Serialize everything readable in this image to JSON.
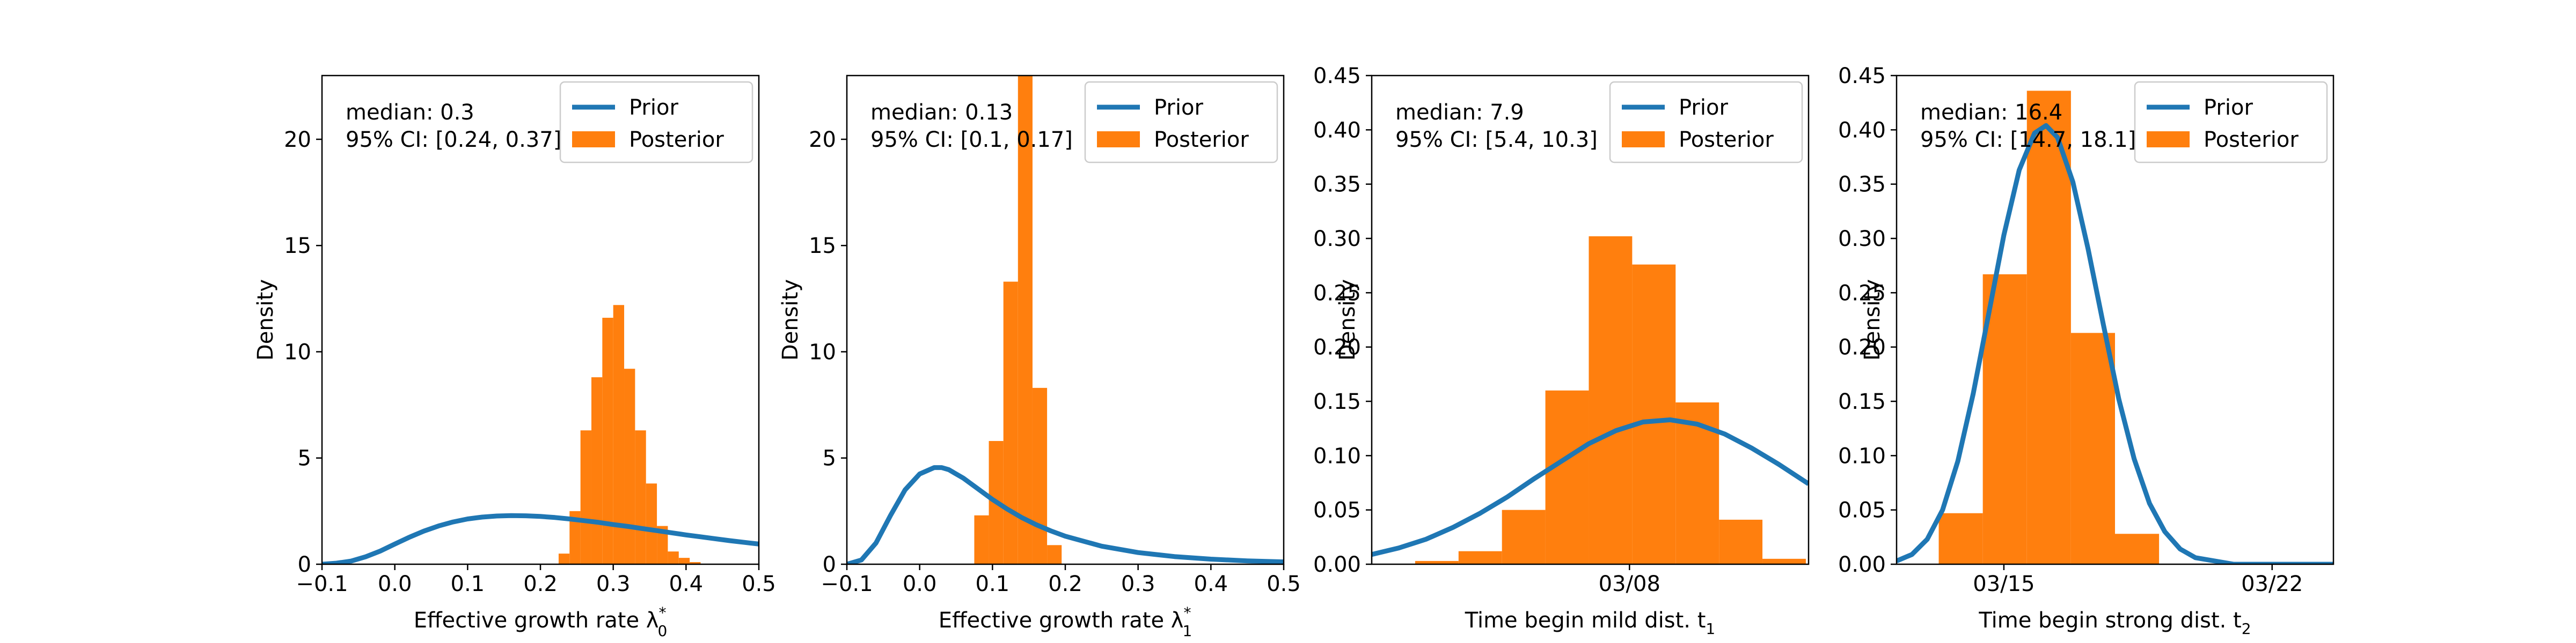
{
  "prior_label": "Prior",
  "posterior_label": "Posterior",
  "prior_color": "#1f77b4",
  "posterior_color": "#ff7f0e",
  "chart_data": [
    {
      "type": "bar",
      "title": "",
      "xlabel": "Effective growth rate λ0*",
      "xlabel_main": "Effective growth rate λ",
      "xlabel_sub": "0",
      "xlabel_sup": "*",
      "ylabel": "Density",
      "xlim": [
        -0.1,
        0.5
      ],
      "ylim": [
        0,
        23
      ],
      "xticks": [
        -0.1,
        0.0,
        0.1,
        0.2,
        0.3,
        0.4,
        0.5
      ],
      "xtick_labels": [
        "−0.1",
        "0.0",
        "0.1",
        "0.2",
        "0.3",
        "0.4",
        "0.5"
      ],
      "yticks": [
        0,
        5,
        10,
        15,
        20
      ],
      "ytick_labels": [
        "0",
        "5",
        "10",
        "15",
        "20"
      ],
      "stats_line1": "median: 0.3",
      "stats_line2": "95% CI: [0.24, 0.37]",
      "legend": "top-right",
      "posterior_hist": {
        "edges": [
          0.225,
          0.24,
          0.255,
          0.27,
          0.285,
          0.3,
          0.315,
          0.33,
          0.345,
          0.36,
          0.375,
          0.39,
          0.405,
          0.42
        ],
        "heights": [
          0.5,
          2.5,
          6.3,
          8.8,
          11.6,
          12.2,
          9.2,
          6.3,
          3.8,
          1.8,
          0.6,
          0.3,
          0.1
        ]
      },
      "prior_curve": {
        "x": [
          -0.1,
          -0.08,
          -0.06,
          -0.04,
          -0.02,
          0.0,
          0.02,
          0.04,
          0.06,
          0.08,
          0.1,
          0.12,
          0.14,
          0.16,
          0.18,
          0.2,
          0.22,
          0.24,
          0.26,
          0.28,
          0.3,
          0.32,
          0.34,
          0.36,
          0.38,
          0.4,
          0.42,
          0.44,
          0.46,
          0.48,
          0.5
        ],
        "y": [
          0.0,
          0.05,
          0.15,
          0.35,
          0.62,
          0.95,
          1.27,
          1.56,
          1.8,
          1.99,
          2.13,
          2.22,
          2.27,
          2.29,
          2.28,
          2.25,
          2.2,
          2.13,
          2.05,
          1.97,
          1.87,
          1.78,
          1.68,
          1.58,
          1.48,
          1.38,
          1.29,
          1.2,
          1.11,
          1.03,
          0.95
        ]
      }
    },
    {
      "type": "bar",
      "title": "",
      "xlabel": "Effective growth rate λ1*",
      "xlabel_main": "Effective growth rate λ",
      "xlabel_sub": "1",
      "xlabel_sup": "*",
      "ylabel": "Density",
      "xlim": [
        -0.1,
        0.5
      ],
      "ylim": [
        0,
        23
      ],
      "xticks": [
        -0.1,
        0.0,
        0.1,
        0.2,
        0.3,
        0.4,
        0.5
      ],
      "xtick_labels": [
        "−0.1",
        "0.0",
        "0.1",
        "0.2",
        "0.3",
        "0.4",
        "0.5"
      ],
      "yticks": [
        0,
        5,
        10,
        15,
        20
      ],
      "ytick_labels": [
        "0",
        "5",
        "10",
        "15",
        "20"
      ],
      "stats_line1": "median: 0.13",
      "stats_line2": "95% CI: [0.1, 0.17]",
      "legend": "top-right",
      "posterior_hist": {
        "edges": [
          0.075,
          0.095,
          0.115,
          0.135,
          0.155,
          0.175,
          0.195
        ],
        "heights": [
          2.3,
          5.8,
          13.3,
          23.0,
          8.3,
          0.9
        ]
      },
      "prior_curve": {
        "x": [
          -0.1,
          -0.08,
          -0.06,
          -0.04,
          -0.02,
          0.0,
          0.02,
          0.03,
          0.04,
          0.06,
          0.08,
          0.1,
          0.12,
          0.14,
          0.16,
          0.18,
          0.2,
          0.25,
          0.3,
          0.35,
          0.4,
          0.45,
          0.5
        ],
        "y": [
          0.0,
          0.2,
          1.0,
          2.3,
          3.5,
          4.25,
          4.55,
          4.55,
          4.45,
          4.05,
          3.55,
          3.05,
          2.6,
          2.2,
          1.86,
          1.57,
          1.32,
          0.85,
          0.55,
          0.36,
          0.24,
          0.16,
          0.11
        ]
      }
    },
    {
      "type": "bar",
      "title": "",
      "xlabel": "Time begin mild dist. t1",
      "xlabel_main": "Time begin mild dist. t",
      "xlabel_sub": "1",
      "xlabel_sup": "",
      "ylabel": "Density",
      "xlim": [
        -1.5,
        14.6
      ],
      "ylim": [
        0,
        0.45
      ],
      "xticks": [
        8
      ],
      "xtick_labels": [
        "03/08"
      ],
      "yticks": [
        0.0,
        0.05,
        0.1,
        0.15,
        0.2,
        0.25,
        0.3,
        0.35,
        0.4,
        0.45
      ],
      "ytick_labels": [
        "0.00",
        "0.05",
        "0.10",
        "0.15",
        "0.20",
        "0.25",
        "0.30",
        "0.35",
        "0.40",
        "0.45"
      ],
      "stats_line1": "median: 7.9",
      "stats_line2": "95% CI: [5.4, 10.3]",
      "legend": "top-right",
      "posterior_hist": {
        "edges": [
          0.1,
          1.7,
          3.3,
          4.9,
          6.5,
          8.1,
          9.7,
          11.3,
          12.9,
          14.5
        ],
        "heights": [
          0.003,
          0.012,
          0.05,
          0.16,
          0.302,
          0.276,
          0.149,
          0.041,
          0.005
        ]
      },
      "prior_curve": {
        "x": [
          -1.5,
          -0.5,
          0.5,
          1.5,
          2.5,
          3.5,
          4.5,
          5.5,
          6.5,
          7.5,
          8.5,
          9.5,
          10.5,
          11.5,
          12.5,
          13.5,
          14.6
        ],
        "y": [
          0.009,
          0.015,
          0.023,
          0.034,
          0.047,
          0.062,
          0.079,
          0.095,
          0.111,
          0.123,
          0.131,
          0.133,
          0.129,
          0.12,
          0.107,
          0.092,
          0.074
        ]
      }
    },
    {
      "type": "bar",
      "title": "",
      "xlabel": "Time begin strong dist. t2",
      "xlabel_main": "Time begin strong dist. t",
      "xlabel_sub": "2",
      "xlabel_sup": "",
      "ylabel": "Density",
      "xlim": [
        12.2,
        23.6
      ],
      "ylim": [
        0,
        0.45
      ],
      "xticks": [
        15,
        22
      ],
      "xtick_labels": [
        "03/15",
        "03/22"
      ],
      "yticks": [
        0.0,
        0.05,
        0.1,
        0.15,
        0.2,
        0.25,
        0.3,
        0.35,
        0.4,
        0.45
      ],
      "ytick_labels": [
        "0.00",
        "0.05",
        "0.10",
        "0.15",
        "0.20",
        "0.25",
        "0.30",
        "0.35",
        "0.40",
        "0.45"
      ],
      "stats_line1": "median: 16.4",
      "stats_line2": "95% CI: [14.7, 18.1]",
      "legend": "top-right",
      "posterior_hist": {
        "edges": [
          13.3,
          14.45,
          15.6,
          16.75,
          17.9,
          19.05
        ],
        "heights": [
          0.047,
          0.267,
          0.436,
          0.213,
          0.028
        ]
      },
      "prior_curve": {
        "x": [
          12.2,
          12.6,
          13.0,
          13.4,
          13.8,
          14.2,
          14.6,
          15.0,
          15.4,
          15.8,
          16.1,
          16.4,
          16.8,
          17.2,
          17.6,
          18.0,
          18.4,
          18.8,
          19.2,
          19.6,
          20.0,
          21.0,
          22.0,
          23.6
        ],
        "y": [
          0.003,
          0.009,
          0.023,
          0.05,
          0.095,
          0.157,
          0.23,
          0.303,
          0.363,
          0.397,
          0.404,
          0.393,
          0.352,
          0.29,
          0.22,
          0.152,
          0.097,
          0.056,
          0.03,
          0.014,
          0.006,
          0.0,
          0.0,
          0.0
        ]
      }
    }
  ]
}
